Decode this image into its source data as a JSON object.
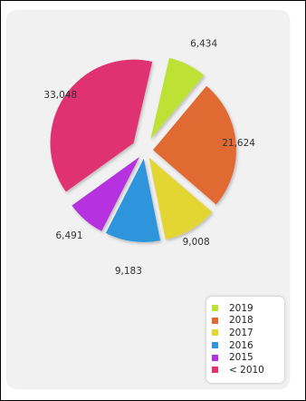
{
  "chart_data": {
    "type": "pie",
    "title": "",
    "slices": [
      {
        "label": "2019",
        "value": 6434,
        "display": "6,434",
        "color": "#bde234"
      },
      {
        "label": "2018",
        "value": 21624,
        "display": "21,624",
        "color": "#e06a33"
      },
      {
        "label": "2017",
        "value": 9008,
        "display": "9,008",
        "color": "#e3d530"
      },
      {
        "label": "2016",
        "value": 9183,
        "display": "9,183",
        "color": "#2f95dc"
      },
      {
        "label": "2015",
        "value": 6491,
        "display": "6,491",
        "color": "#b632e0"
      },
      {
        "label": "< 2010",
        "value": 33048,
        "display": "33,048",
        "color": "#e0326f"
      }
    ],
    "exploded": true,
    "legend_position": "bottom-right"
  }
}
